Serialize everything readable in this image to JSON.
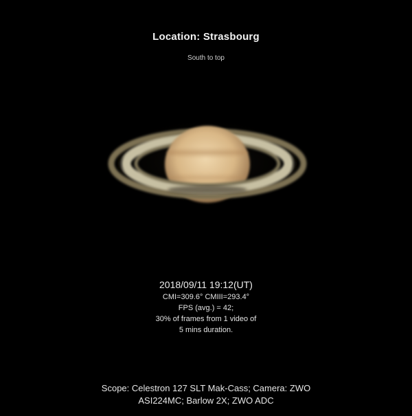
{
  "header": {
    "title": "Location: Strasbourg",
    "orientation": "South to top"
  },
  "subject": {
    "name": "saturn-image",
    "colors": {
      "globe_center": "#e6c99c",
      "globe_edge": "#7a5e3e",
      "ring_outer": "#8a7d5c",
      "ring_inner": "#c9c2a6",
      "background": "#000000"
    }
  },
  "observation": {
    "datetime": "2018/09/11 19:12(UT)",
    "central_meridians": "CMI=309.6°  CMIII=293.4°",
    "fps": "FPS (avg.) = 42;",
    "frames": "30%  of frames from  1 video of",
    "duration": "5 mins duration."
  },
  "equipment": {
    "line1": "Scope: Celestron 127 SLT  Mak-Cass; Camera: ZWO",
    "line2": "ASI224MC; Barlow 2X;  ZWO ADC"
  }
}
